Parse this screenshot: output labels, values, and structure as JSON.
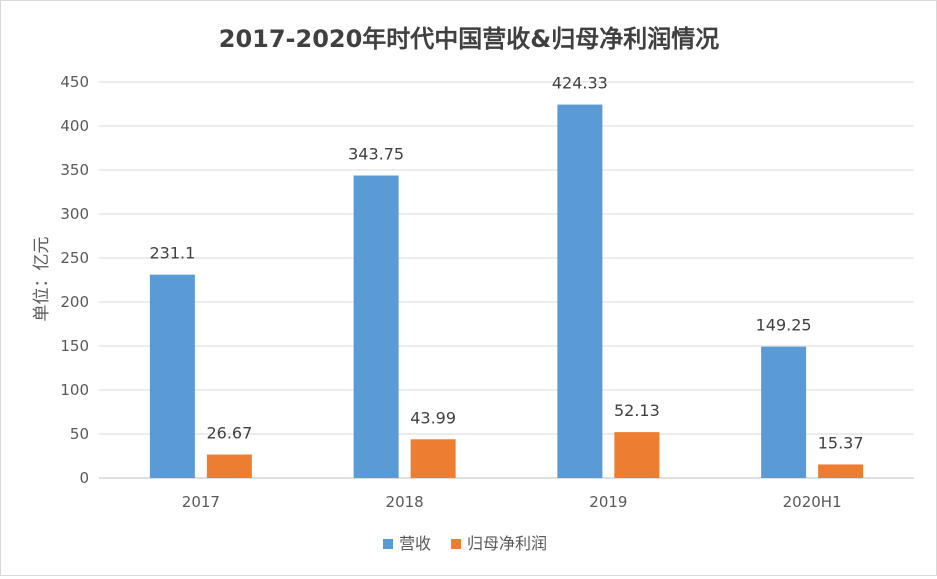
{
  "chart_data": {
    "type": "bar",
    "title": "2017-2020年时代中国营收&归母净利润情况",
    "xlabel": "",
    "ylabel": "单位：亿元",
    "categories": [
      "2017",
      "2018",
      "2019",
      "2020H1"
    ],
    "series": [
      {
        "name": "营收",
        "color": "#5b9bd5",
        "values": [
          231.1,
          343.75,
          424.33,
          149.25
        ],
        "labels": [
          "231.1",
          "343.75",
          "424.33",
          "149.25"
        ]
      },
      {
        "name": "归母净利润",
        "color": "#ed7d31",
        "values": [
          26.67,
          43.99,
          52.13,
          15.37
        ],
        "labels": [
          "26.67",
          "43.99",
          "52.13",
          "15.37"
        ]
      }
    ],
    "ylim": [
      0,
      450
    ],
    "yticks": [
      "0",
      "50",
      "100",
      "150",
      "200",
      "250",
      "300",
      "350",
      "400",
      "450"
    ],
    "grid": true,
    "legend_position": "bottom"
  }
}
